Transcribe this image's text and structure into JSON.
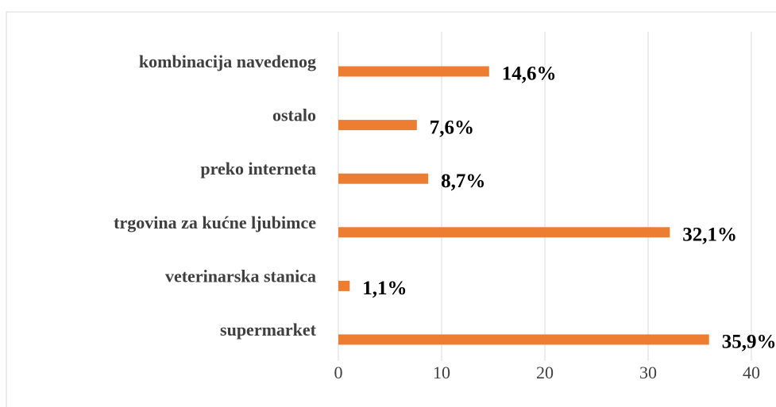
{
  "chart_data": {
    "type": "bar",
    "orientation": "horizontal",
    "categories": [
      "kombinacija navedenog",
      "ostalo",
      "preko interneta",
      "trgovina za kućne ljubimce",
      "veterinarska stanica",
      "supermarket"
    ],
    "values": [
      14.6,
      7.6,
      8.7,
      32.1,
      1.1,
      35.9
    ],
    "value_labels": [
      "14,6%",
      "7,6%",
      "8,7%",
      "32,1%",
      "1,1%",
      "35,9%"
    ],
    "color": "#ed7d31",
    "xlim": [
      0,
      40
    ],
    "xticks": [
      0,
      10,
      20,
      30,
      40
    ],
    "grid": true
  }
}
